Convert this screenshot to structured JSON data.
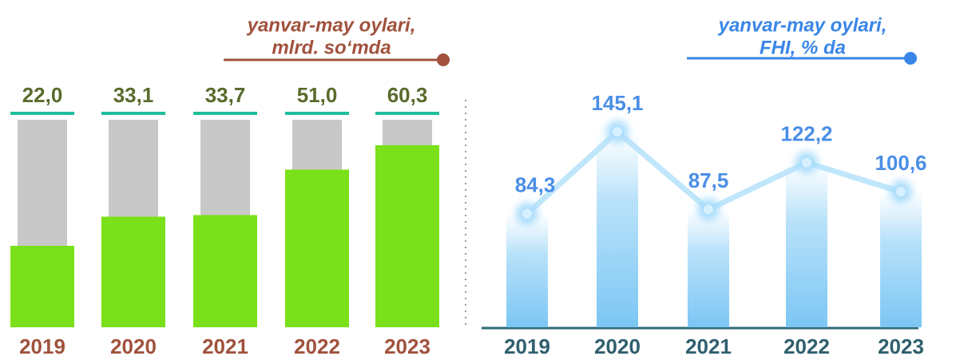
{
  "chart_data": [
    {
      "type": "bar",
      "subtitle": [
        "yanvar-may oylari,",
        "mlrd. so‘mda"
      ],
      "categories": [
        "2019",
        "2020",
        "2021",
        "2022",
        "2023"
      ],
      "values": [
        22.0,
        33.1,
        33.7,
        51.0,
        60.3
      ],
      "value_labels": [
        "22,0",
        "33,1",
        "33,7",
        "51,0",
        "60,3"
      ],
      "color": "#7ae019",
      "background_color": "#c8c8c8",
      "label_color": "#5a6b2c",
      "category_color": "#a0523d",
      "subtitle_color": "#a0523d",
      "ylim": [
        -9,
        70
      ]
    },
    {
      "type": "bar_line",
      "subtitle": [
        "yanvar-may oylari,",
        "FHI, % da"
      ],
      "categories": [
        "2019",
        "2020",
        "2021",
        "2022",
        "2023"
      ],
      "values": [
        84.3,
        145.1,
        87.5,
        122.2,
        100.6
      ],
      "value_labels": [
        "84,3",
        "145,1",
        "87,5",
        "122,2",
        "100,6"
      ],
      "color": "#8ccdf5",
      "line_color": "#bfe6fb",
      "label_color": "#4a8ee6",
      "category_color": "#2f5f6e",
      "subtitle_color": "#3a86e8",
      "ylim": [
        0,
        160
      ]
    }
  ]
}
